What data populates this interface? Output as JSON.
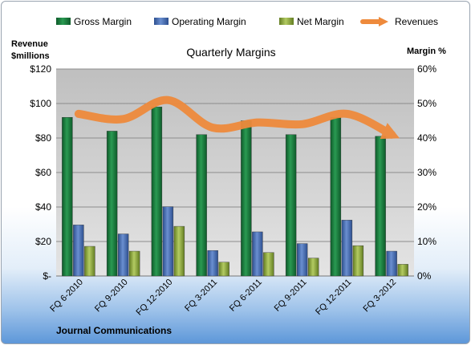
{
  "chart_data": {
    "type": "bar",
    "title": "Quarterly Margins",
    "left_axis_label_line1": "Revenue",
    "left_axis_label_line2": "$millions",
    "right_axis_label": "Margin %",
    "footer": "Journal Communications",
    "categories": [
      "FQ 6-2010",
      "FQ 9-2010",
      "FQ 12-2010",
      "FQ 3-2011",
      "FQ 6-2011",
      "FQ 9-2011",
      "FQ 12-2011",
      "FQ 3-2012"
    ],
    "left_axis": {
      "min": 0,
      "max": 120,
      "step": 20,
      "ticks": [
        "$-",
        "$20",
        "$40",
        "$60",
        "$80",
        "$100",
        "$120"
      ]
    },
    "right_axis": {
      "min": 0,
      "max": 60,
      "step": 10,
      "ticks": [
        "0%",
        "10%",
        "20%",
        "30%",
        "40%",
        "50%",
        "60%"
      ]
    },
    "grid": true,
    "legend_position": "top",
    "series": [
      {
        "name": "Gross Margin",
        "kind": "bar",
        "axis": "right",
        "color": "#1e7a3f",
        "values": [
          46,
          42,
          49,
          41,
          45,
          41,
          46,
          40.5
        ]
      },
      {
        "name": "Operating Margin",
        "kind": "bar",
        "axis": "right",
        "color": "#4169b0",
        "values": [
          14.8,
          12.2,
          20.1,
          7.4,
          12.8,
          9.4,
          16.2,
          7.2
        ]
      },
      {
        "name": "Net Margin",
        "kind": "bar",
        "axis": "right",
        "color": "#8aa93a",
        "values": [
          8.6,
          7.2,
          14.4,
          4.0,
          6.8,
          5.2,
          8.8,
          3.4
        ]
      },
      {
        "name": "Revenues",
        "kind": "line",
        "axis": "left",
        "color": "#ee8a3c",
        "values": [
          94,
          91,
          102,
          86,
          89,
          88,
          94,
          82
        ]
      }
    ]
  }
}
